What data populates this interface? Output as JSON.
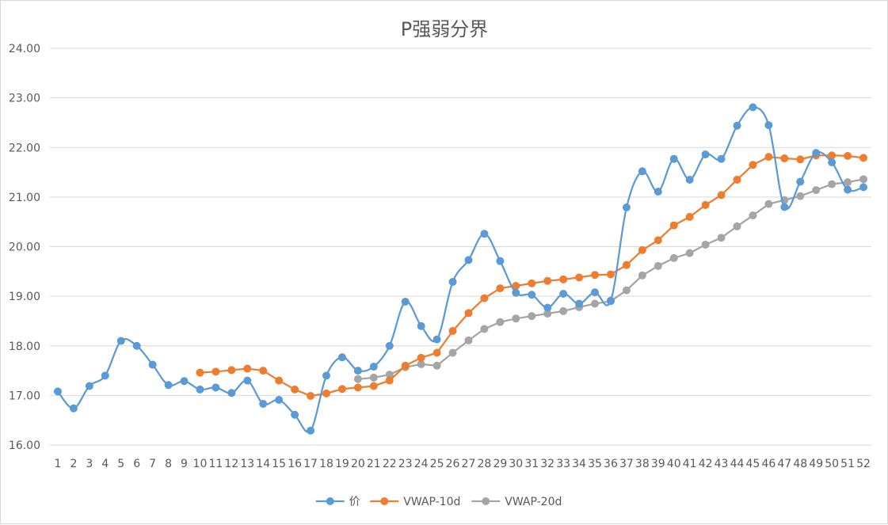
{
  "chart_data": {
    "type": "line",
    "title": "P强弱分界",
    "xlabel": "",
    "ylabel": "",
    "ylim": [
      16,
      24
    ],
    "yticks": [
      "16.00",
      "17.00",
      "18.00",
      "19.00",
      "20.00",
      "21.00",
      "22.00",
      "23.00",
      "24.00"
    ],
    "categories": [
      "1",
      "2",
      "3",
      "4",
      "5",
      "6",
      "7",
      "8",
      "9",
      "10",
      "11",
      "12",
      "13",
      "14",
      "15",
      "16",
      "17",
      "18",
      "19",
      "20",
      "21",
      "22",
      "23",
      "24",
      "25",
      "26",
      "27",
      "28",
      "29",
      "30",
      "31",
      "32",
      "33",
      "34",
      "35",
      "36",
      "37",
      "38",
      "39",
      "40",
      "41",
      "42",
      "43",
      "44",
      "45",
      "46",
      "47",
      "48",
      "49",
      "50",
      "51",
      "52"
    ],
    "grid": true,
    "legend_position": "bottom",
    "series": [
      {
        "name": "价",
        "color": "#5b9bd5",
        "smooth": true,
        "values": [
          17.08,
          16.74,
          17.19,
          17.4,
          18.1,
          18.0,
          17.62,
          17.21,
          17.29,
          17.12,
          17.16,
          17.05,
          17.3,
          16.83,
          16.91,
          16.61,
          16.29,
          17.4,
          17.77,
          17.5,
          17.58,
          18.0,
          18.89,
          18.4,
          18.13,
          19.29,
          19.73,
          20.26,
          19.71,
          19.07,
          19.03,
          18.77,
          19.05,
          18.85,
          19.08,
          18.91,
          20.79,
          21.52,
          21.11,
          21.77,
          21.35,
          21.86,
          21.77,
          22.44,
          22.81,
          22.45,
          20.8,
          21.31,
          21.89,
          21.7,
          21.15,
          21.2
        ]
      },
      {
        "name": "VWAP-10d",
        "color": "#ed7d31",
        "smooth": false,
        "values": [
          null,
          null,
          null,
          null,
          null,
          null,
          null,
          null,
          null,
          17.46,
          17.48,
          17.51,
          17.54,
          17.5,
          17.3,
          17.12,
          16.99,
          17.04,
          17.13,
          17.16,
          17.19,
          17.3,
          17.6,
          17.76,
          17.86,
          18.3,
          18.66,
          18.96,
          19.16,
          19.21,
          19.26,
          19.31,
          19.34,
          19.38,
          19.43,
          19.44,
          19.63,
          19.93,
          20.13,
          20.43,
          20.6,
          20.84,
          21.04,
          21.35,
          21.65,
          21.81,
          21.78,
          21.76,
          21.84,
          21.84,
          21.83,
          21.79
        ]
      },
      {
        "name": "VWAP-20d",
        "color": "#a5a5a5",
        "smooth": false,
        "values": [
          null,
          null,
          null,
          null,
          null,
          null,
          null,
          null,
          null,
          null,
          null,
          null,
          null,
          null,
          null,
          null,
          null,
          null,
          null,
          17.33,
          17.36,
          17.42,
          17.57,
          17.63,
          17.6,
          17.86,
          18.11,
          18.34,
          18.48,
          18.55,
          18.6,
          18.65,
          18.7,
          18.78,
          18.85,
          18.9,
          19.12,
          19.42,
          19.61,
          19.77,
          19.87,
          20.04,
          20.18,
          20.41,
          20.63,
          20.86,
          20.94,
          21.02,
          21.14,
          21.26,
          21.3,
          21.36
        ]
      }
    ]
  }
}
